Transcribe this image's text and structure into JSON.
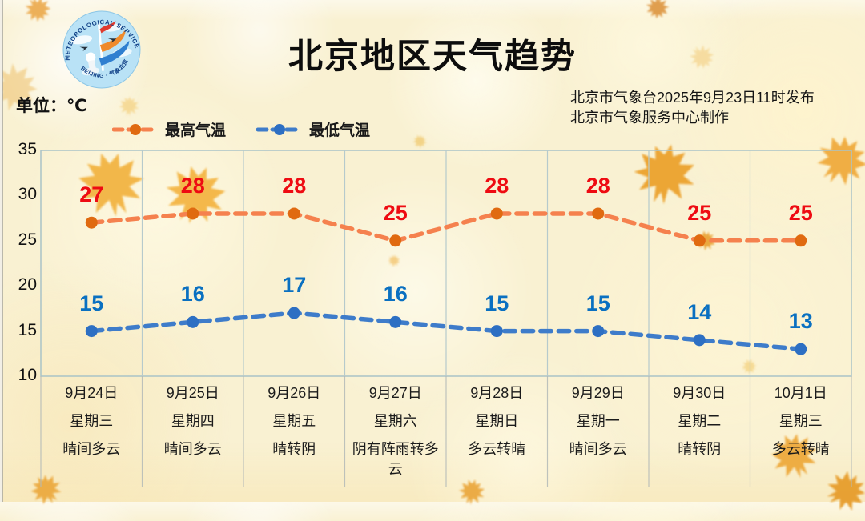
{
  "page": {
    "background": "#f9f1d2"
  },
  "logo": {
    "name": "beijing-meteorological-service-logo",
    "arc_text_top": "METEOROLOGICAL SERVICE",
    "arc_text_bottom": "BEIJING · 气象北京"
  },
  "header": {
    "title": "北京地区天气趋势",
    "unit_label": "单位：℃",
    "issue_line1": "北京市气象台2025年9月23日11时发布",
    "issue_line2": "北京市气象服务中心制作"
  },
  "chart_data": {
    "type": "line",
    "title": "北京地区天气趋势",
    "unit": "℃",
    "categories": [
      "9月24日",
      "9月25日",
      "9月26日",
      "9月27日",
      "9月28日",
      "9月29日",
      "9月30日",
      "10月1日"
    ],
    "weekdays": [
      "星期三",
      "星期四",
      "星期五",
      "星期六",
      "星期日",
      "星期一",
      "星期二",
      "星期三"
    ],
    "weather": [
      "晴间多云",
      "晴间多云",
      "晴转阴",
      "阴有阵雨转多云",
      "多云转晴",
      "晴间多云",
      "晴转阴",
      "多云转晴"
    ],
    "series": [
      {
        "name": "最高气温",
        "values": [
          27,
          28,
          28,
          25,
          28,
          28,
          25,
          25
        ],
        "line_color": "#f5814e",
        "marker_color": "#e06a10",
        "label_color": "#ee0b12"
      },
      {
        "name": "最低气温",
        "values": [
          15,
          16,
          17,
          16,
          15,
          15,
          14,
          13
        ],
        "line_color": "#3e7cca",
        "marker_color": "#2d6fc3",
        "label_color": "#0a70c1"
      }
    ],
    "ylim": [
      10,
      35
    ],
    "yticks": [
      35,
      30,
      25,
      20,
      15,
      10
    ],
    "grid": true,
    "legend_position": "top-left",
    "grid_color": "#b6cacc",
    "border_color": "#a9c3c7"
  }
}
